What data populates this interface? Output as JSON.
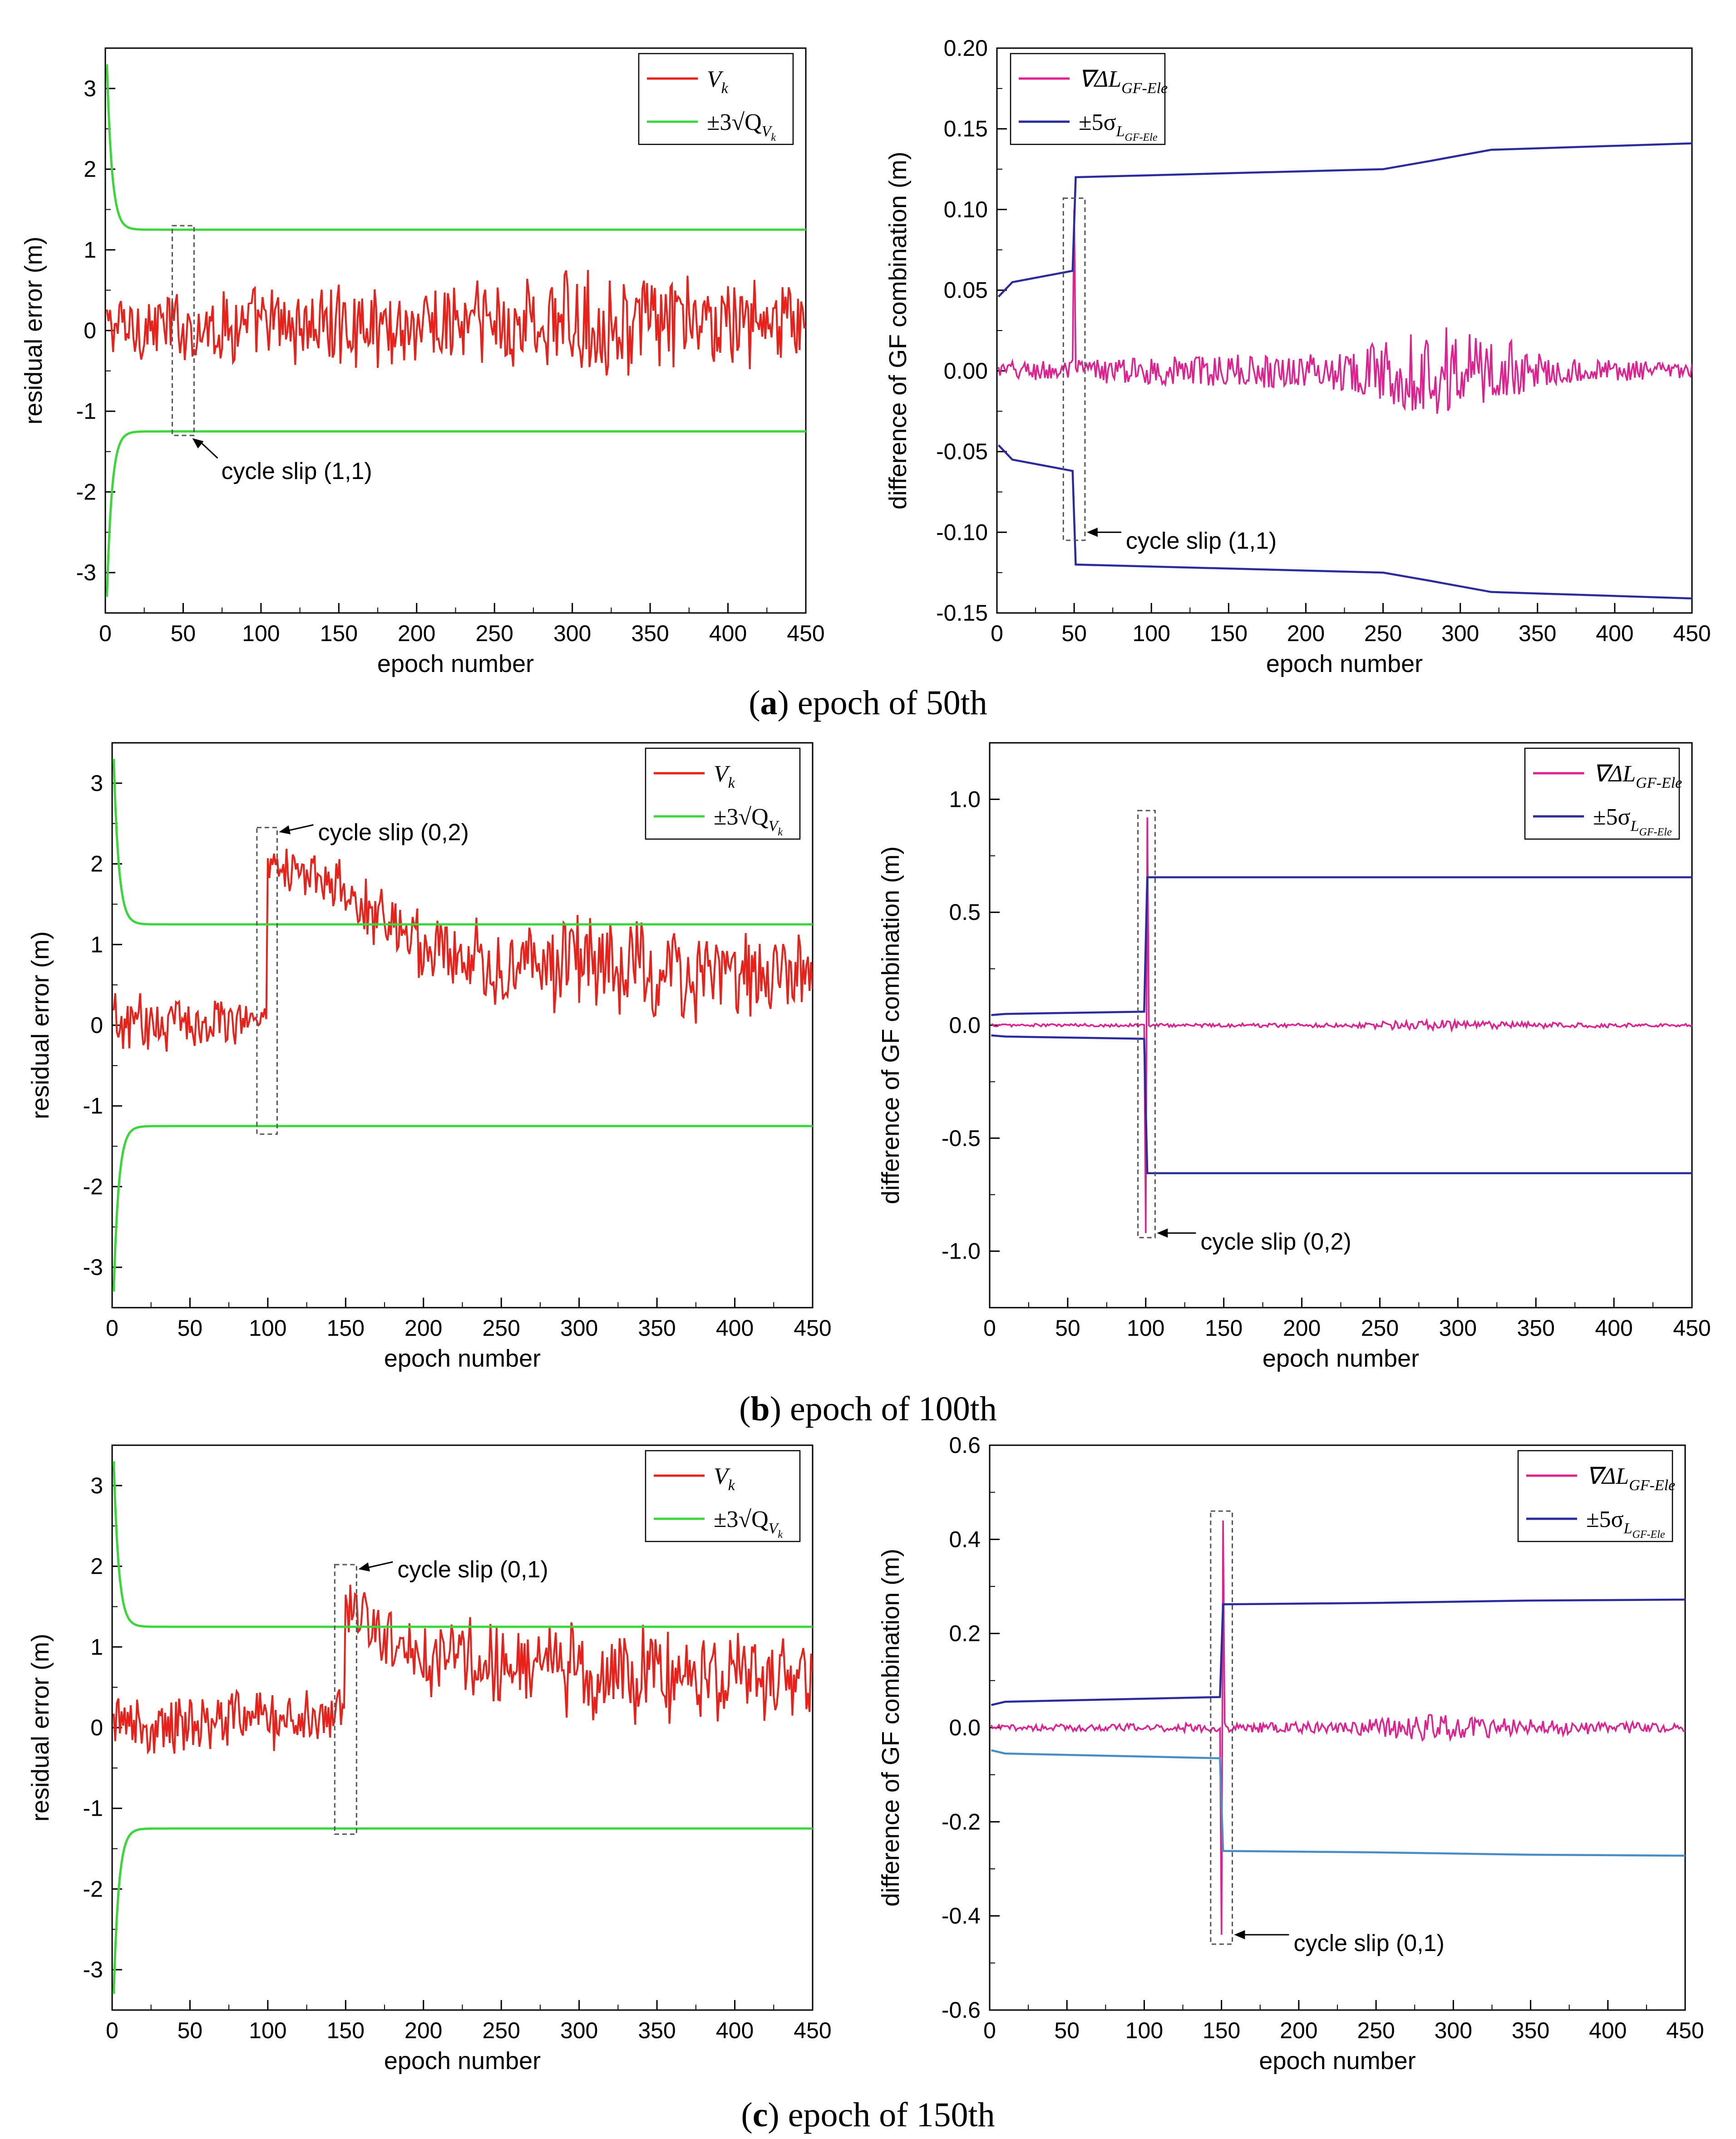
{
  "captions": [
    {
      "letter": "a",
      "text": ") epoch of 50th"
    },
    {
      "letter": "b",
      "text": ") epoch of 100th"
    },
    {
      "letter": "c",
      "text": ") epoch of 150th"
    }
  ],
  "chart_data": [
    {
      "id": "a-left",
      "type": "line",
      "xlabel": "epoch number",
      "ylabel": "residual error (m)",
      "xlim": [
        0,
        450
      ],
      "ylim": [
        -3.5,
        3.5
      ],
      "xticks": [
        0,
        50,
        100,
        150,
        200,
        250,
        300,
        350,
        400,
        450
      ],
      "yticks": [
        -3,
        -2,
        -1,
        0,
        1,
        2,
        3
      ],
      "legend": {
        "position": "top-right",
        "entries": [
          {
            "symbol": "V",
            "sub": "k",
            "color": "#e8211a"
          },
          {
            "symbol": "±3√Q",
            "sub": "V",
            "subsub": "k",
            "color": "#3ad63a"
          }
        ]
      },
      "series": [
        {
          "kind": "noise",
          "color": "#e8211a",
          "epochs": [
            1,
            450
          ],
          "amp_segments": [
            [
              0,
              0.32
            ],
            [
              150,
              0.38
            ],
            [
              280,
              0.5
            ],
            [
              340,
              0.45
            ],
            [
              450,
              0.4
            ]
          ],
          "mean_segments": [
            [
              0,
              0.05
            ],
            [
              450,
              0.1
            ]
          ]
        },
        {
          "kind": "envelope",
          "color": "#3ad63a",
          "asymptote": 1.25,
          "start": 3.3
        }
      ],
      "annotation": {
        "text": "cycle slip (1,1)",
        "box": {
          "x0": 43,
          "x1": 57,
          "y0": -1.3,
          "y1": 1.3
        }
      }
    },
    {
      "id": "a-right",
      "type": "line",
      "xlabel": "epoch number",
      "ylabel": "difference of GF combination (m)",
      "xlim": [
        0,
        450
      ],
      "ylim": [
        -0.15,
        0.2
      ],
      "xticks": [
        0,
        50,
        100,
        150,
        200,
        250,
        300,
        350,
        400,
        450
      ],
      "yticks": [
        -0.15,
        -0.1,
        -0.05,
        0.0,
        0.05,
        0.1,
        0.15,
        0.2
      ],
      "legend": {
        "position": "top-left",
        "entries": [
          {
            "symbol": "∇ΔL",
            "sub": "GF-Ele",
            "color": "#e0208f"
          },
          {
            "symbol": "±5σ",
            "sub": "L",
            "subsub": "GF-Ele",
            "color": "#2b2b9c"
          }
        ]
      },
      "series": [
        {
          "kind": "gf",
          "color": "#e0208f",
          "slip_epoch": 50,
          "spike": 0.1,
          "amp_segments": [
            [
              0,
              0.006
            ],
            [
              230,
              0.012
            ],
            [
              280,
              0.03
            ],
            [
              330,
              0.02
            ],
            [
              360,
              0.008
            ],
            [
              450,
              0.005
            ]
          ]
        },
        {
          "kind": "sigma",
          "color": "#2b2b9c",
          "pre": [
            [
              1,
              0.046
            ],
            [
              10,
              0.055
            ],
            [
              49,
              0.062
            ]
          ],
          "post": [
            [
              51,
              0.12
            ],
            [
              250,
              0.125
            ],
            [
              280,
              0.13
            ],
            [
              320,
              0.137
            ],
            [
              450,
              0.141
            ]
          ]
        }
      ],
      "annotation": {
        "text": "cycle slip (1,1)",
        "box": {
          "x0": 43,
          "x1": 57,
          "y0": -0.105,
          "y1": 0.107
        }
      }
    },
    {
      "id": "b-left",
      "type": "line",
      "xlabel": "epoch number",
      "ylabel": "residual error (m)",
      "xlim": [
        0,
        450
      ],
      "ylim": [
        -3.5,
        3.5
      ],
      "xticks": [
        0,
        50,
        100,
        150,
        200,
        250,
        300,
        350,
        400,
        450
      ],
      "yticks": [
        -3,
        -2,
        -1,
        0,
        1,
        2,
        3
      ],
      "legend": {
        "position": "top-right",
        "entries": [
          {
            "symbol": "V",
            "sub": "k",
            "color": "#e8211a"
          },
          {
            "symbol": "±3√Q",
            "sub": "V",
            "subsub": "k",
            "color": "#3ad63a"
          }
        ]
      },
      "series": [
        {
          "kind": "noise",
          "color": "#e8211a",
          "epochs": [
            1,
            450
          ],
          "amp_segments": [
            [
              0,
              0.3
            ],
            [
              100,
              0.2
            ],
            [
              150,
              0.3
            ],
            [
              280,
              0.45
            ],
            [
              340,
              0.45
            ],
            [
              450,
              0.35
            ]
          ],
          "mean_segments": [
            [
              0,
              0.0
            ],
            [
              99,
              0.1
            ],
            [
              100,
              2.1
            ],
            [
              150,
              1.6
            ],
            [
              200,
              1.05
            ],
            [
              250,
              0.7
            ],
            [
              300,
              0.8
            ],
            [
              350,
              0.6
            ],
            [
              450,
              0.65
            ]
          ]
        },
        {
          "kind": "envelope",
          "color": "#3ad63a",
          "asymptote": 1.25,
          "start": 3.3
        }
      ],
      "annotation": {
        "text": "cycle slip (0,2)",
        "box": {
          "x0": 93,
          "x1": 106,
          "y0": -1.35,
          "y1": 2.45
        }
      }
    },
    {
      "id": "b-right",
      "type": "line",
      "xlabel": "epoch number",
      "ylabel": "difference of GF combination (m)",
      "xlim": [
        0,
        450
      ],
      "ylim": [
        -1.25,
        1.25
      ],
      "xticks": [
        0,
        50,
        100,
        150,
        200,
        250,
        300,
        350,
        400,
        450
      ],
      "yticks": [
        -1.0,
        -0.5,
        0.0,
        0.5,
        1.0
      ],
      "legend": {
        "position": "top-right",
        "entries": [
          {
            "symbol": "∇ΔL",
            "sub": "GF-Ele",
            "color": "#e0208f"
          },
          {
            "symbol": "±5σ",
            "sub": "L",
            "subsub": "GF-Ele",
            "color": "#2b2b9c"
          }
        ]
      },
      "series": [
        {
          "kind": "gf",
          "color": "#e0208f",
          "slip_epoch": 100,
          "spike": 0.92,
          "amp_segments": [
            [
              0,
              0.006
            ],
            [
              230,
              0.01
            ],
            [
              280,
              0.025
            ],
            [
              330,
              0.015
            ],
            [
              450,
              0.006
            ]
          ]
        },
        {
          "kind": "sigma",
          "color": "#2b2b9c",
          "pre": [
            [
              1,
              0.045
            ],
            [
              10,
              0.05
            ],
            [
              99,
              0.06
            ]
          ],
          "post": [
            [
              101,
              0.655
            ],
            [
              450,
              0.655
            ]
          ]
        }
      ],
      "annotation": {
        "text": "cycle slip (0,2)",
        "box": {
          "x0": 95,
          "x1": 106,
          "y0": -0.94,
          "y1": 0.95
        }
      }
    },
    {
      "id": "c-left",
      "type": "line",
      "xlabel": "epoch number",
      "ylabel": "residual error (m)",
      "xlim": [
        0,
        450
      ],
      "ylim": [
        -3.5,
        3.5
      ],
      "xticks": [
        0,
        50,
        100,
        150,
        200,
        250,
        300,
        350,
        400,
        450
      ],
      "yticks": [
        -3,
        -2,
        -1,
        0,
        1,
        2,
        3
      ],
      "legend": {
        "position": "top-right",
        "entries": [
          {
            "symbol": "V",
            "sub": "k",
            "color": "#e8211a"
          },
          {
            "symbol": "±3√Q",
            "sub": "V",
            "subsub": "k",
            "color": "#3ad63a"
          }
        ]
      },
      "series": [
        {
          "kind": "noise",
          "color": "#e8211a",
          "epochs": [
            1,
            450
          ],
          "amp_segments": [
            [
              0,
              0.3
            ],
            [
              150,
              0.3
            ],
            [
              280,
              0.45
            ],
            [
              340,
              0.45
            ],
            [
              450,
              0.4
            ]
          ],
          "mean_segments": [
            [
              0,
              0.0
            ],
            [
              149,
              0.2
            ],
            [
              150,
              1.5
            ],
            [
              200,
              0.9
            ],
            [
              300,
              0.7
            ],
            [
              450,
              0.55
            ]
          ]
        },
        {
          "kind": "envelope",
          "color": "#3ad63a",
          "asymptote": 1.25,
          "start": 3.3
        }
      ],
      "annotation": {
        "text": "cycle slip (0,1)",
        "box": {
          "x0": 143,
          "x1": 157,
          "y0": -1.32,
          "y1": 2.02
        }
      }
    },
    {
      "id": "c-right",
      "type": "line",
      "xlabel": "epoch number",
      "ylabel": "difference of GF combination (m)",
      "xlim": [
        0,
        450
      ],
      "ylim": [
        -0.6,
        0.6
      ],
      "xticks": [
        0,
        50,
        100,
        150,
        200,
        250,
        300,
        350,
        400,
        450
      ],
      "yticks": [
        -0.6,
        -0.4,
        -0.2,
        0.0,
        0.2,
        0.4,
        0.6
      ],
      "legend": {
        "position": "top-right",
        "entries": [
          {
            "symbol": "∇ΔL",
            "sub": "GF-Ele",
            "color": "#e0208f"
          },
          {
            "symbol": "±5σ",
            "sub": "L",
            "subsub": "GF-Ele",
            "color": "#2b2b9c"
          }
        ]
      },
      "series": [
        {
          "kind": "gf",
          "color": "#e0208f",
          "slip_epoch": 150,
          "spike": 0.44,
          "amp_segments": [
            [
              0,
              0.006
            ],
            [
              230,
              0.012
            ],
            [
              280,
              0.03
            ],
            [
              330,
              0.02
            ],
            [
              450,
              0.008
            ]
          ]
        },
        {
          "kind": "sigma",
          "color": "#2b2b9c",
          "pre": [
            [
              1,
              0.048
            ],
            [
              10,
              0.055
            ],
            [
              149,
              0.065
            ]
          ],
          "post": [
            [
              151,
              0.262
            ],
            [
              250,
              0.265
            ],
            [
              350,
              0.27
            ],
            [
              450,
              0.272
            ]
          ]
        }
      ],
      "annotation": {
        "text": "cycle slip (0,1)",
        "box": {
          "x0": 143,
          "x1": 157,
          "y0": -0.46,
          "y1": 0.46
        }
      }
    }
  ]
}
